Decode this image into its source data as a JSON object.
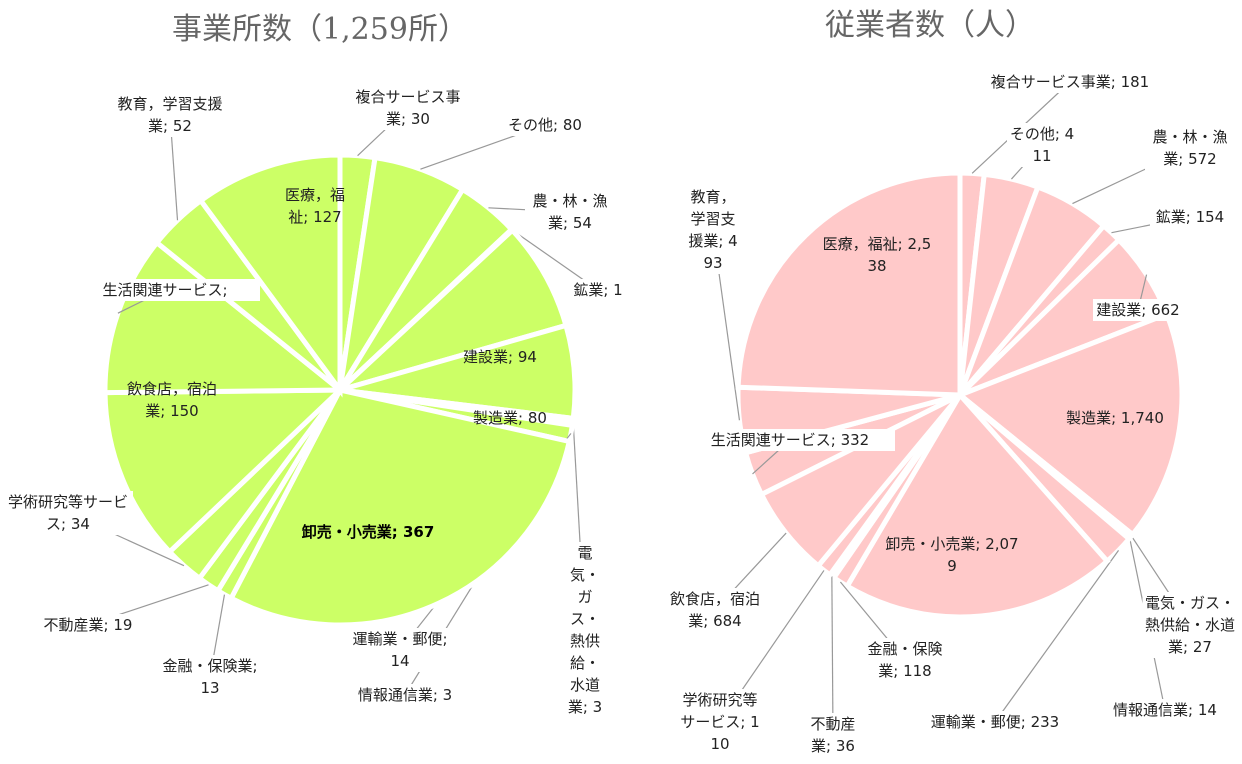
{
  "chart_data": [
    {
      "type": "pie",
      "title": "事業所数（1,259所）",
      "color": "#ccff66",
      "labels": [
        "複合サービス事業; 30",
        "その他; 80",
        "農・林・漁業; 54",
        "鉱業; 1",
        "建設業; 94",
        "製造業; 80",
        "電気・ガス・熱供給・水道業; 3",
        "情報通信業; 3",
        "運輸業・郵便; 14",
        "卸売・小売業; 367",
        "金融・保険業; 13",
        "不動産業; 19",
        "学術研究等サービス; 34",
        "飲食店，宿泊業; 150",
        "生活関連サービス;",
        "教育，学習支援業; 52",
        "医療，福祉; 127"
      ],
      "values": [
        30,
        80,
        54,
        1,
        94,
        80,
        3,
        3,
        14,
        367,
        13,
        19,
        34,
        150,
        138,
        52,
        127
      ]
    },
    {
      "type": "pie",
      "title": "従業者数（人）",
      "color": "#ffc9c9",
      "labels": [
        "複合サービス事業; 181",
        "その他; 411",
        "農・林・漁業; 572",
        "鉱業; 154",
        "建設業; 662",
        "製造業; 1,740",
        "電気・ガス・熱供給・水道業; 27",
        "情報通信業; 14",
        "運輸業・郵便; 233",
        "卸売・小売業; 2,079",
        "金融・保険業; 118",
        "不動産業; 36",
        "学術研究等サービス; 110",
        "飲食店，宿泊業; 684",
        "生活関連サービス; 332",
        "教育，学習支援業; 493",
        "医療，福祉; 2,538"
      ],
      "values": [
        181,
        411,
        572,
        154,
        662,
        1740,
        27,
        14,
        233,
        2079,
        118,
        36,
        110,
        684,
        332,
        493,
        2538
      ]
    }
  ]
}
